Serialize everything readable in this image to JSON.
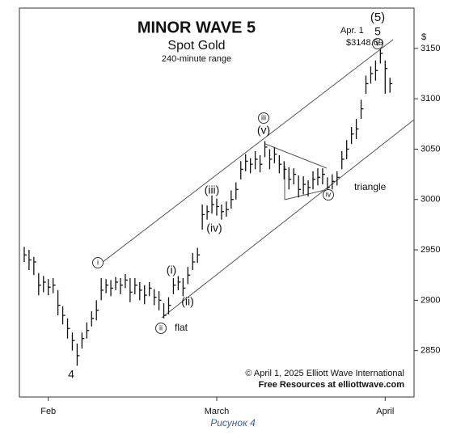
{
  "chart_data": {
    "type": "ohlc",
    "title": "MINOR WAVE 5",
    "subtitle": "Spot Gold",
    "note": "240-minute range",
    "y_label": "$",
    "caption": "Рисунок 4",
    "footer": [
      "© April 1, 2025  Elliott Wave International",
      "Free Resources at elliottwave.com"
    ],
    "color": "#111111",
    "x": [
      0,
      1,
      2,
      3,
      4,
      5,
      6,
      7,
      8,
      9,
      10,
      11,
      12,
      13,
      14,
      15,
      16,
      17,
      18,
      19,
      20,
      21,
      22,
      23,
      24,
      25,
      26,
      27,
      28,
      29,
      30,
      31,
      32,
      33,
      34,
      35,
      36,
      37,
      38,
      39,
      40,
      41,
      42,
      43,
      44,
      45,
      46,
      47,
      48,
      49,
      50,
      51,
      52,
      53,
      54,
      55,
      56,
      57,
      58,
      59,
      60,
      61,
      62,
      63,
      64,
      65,
      66,
      67,
      68,
      69,
      70,
      71,
      72,
      73,
      74,
      75,
      76
    ],
    "high": [
      2953,
      2950,
      2943,
      2927,
      2924,
      2921,
      2922,
      2910,
      2894,
      2882,
      2868,
      2857,
      2868,
      2878,
      2889,
      2900,
      2922,
      2921,
      2920,
      2923,
      2922,
      2926,
      2922,
      2922,
      2918,
      2915,
      2918,
      2911,
      2909,
      2897,
      2903,
      2922,
      2924,
      2922,
      2933,
      2947,
      2952,
      2995,
      2994,
      3004,
      3001,
      2995,
      2998,
      3009,
      3017,
      3038,
      3045,
      3041,
      3048,
      3044,
      3058,
      3050,
      3052,
      3044,
      3038,
      3032,
      3031,
      3024,
      3023,
      3019,
      3028,
      3031,
      3031,
      3022,
      3025,
      3028,
      3048,
      3059,
      3072,
      3080,
      3099,
      3123,
      3132,
      3138,
      3149,
      3138,
      3121
    ],
    "low": [
      2938,
      2930,
      2925,
      2905,
      2908,
      2905,
      2907,
      2885,
      2876,
      2862,
      2850,
      2835,
      2852,
      2862,
      2874,
      2880,
      2900,
      2907,
      2904,
      2910,
      2906,
      2912,
      2898,
      2906,
      2900,
      2896,
      2904,
      2895,
      2890,
      2882,
      2886,
      2906,
      2910,
      2904,
      2916,
      2930,
      2937,
      2970,
      2980,
      2986,
      2984,
      2980,
      2983,
      2991,
      3000,
      3020,
      3028,
      3026,
      3030,
      3027,
      3042,
      3030,
      3036,
      3026,
      3020,
      3010,
      3015,
      3002,
      3005,
      3003,
      3010,
      3014,
      3015,
      3004,
      3010,
      3014,
      3030,
      3040,
      3055,
      3060,
      3080,
      3105,
      3115,
      3118,
      3135,
      3105,
      3106
    ],
    "close": [
      2945,
      2940,
      2938,
      2915,
      2918,
      2913,
      2915,
      2895,
      2885,
      2872,
      2860,
      2845,
      2862,
      2870,
      2882,
      2890,
      2910,
      2915,
      2912,
      2918,
      2915,
      2920,
      2908,
      2915,
      2910,
      2905,
      2912,
      2903,
      2900,
      2885,
      2895,
      2915,
      2918,
      2912,
      2925,
      2938,
      2945,
      2985,
      2988,
      2995,
      2993,
      2988,
      2990,
      3000,
      3010,
      3030,
      3038,
      3035,
      3040,
      3035,
      3052,
      3040,
      3045,
      3035,
      3030,
      3020,
      3025,
      3010,
      3015,
      3012,
      3020,
      3022,
      3025,
      3012,
      3018,
      3022,
      3040,
      3050,
      3065,
      3070,
      3090,
      3115,
      3125,
      3128,
      3145,
      3130,
      3115
    ],
    "xlim": [
      -1,
      81
    ],
    "xticks": [
      {
        "value": 5,
        "label": "Feb"
      },
      {
        "value": 40,
        "label": "March"
      },
      {
        "value": 75,
        "label": "April"
      }
    ],
    "ylim": [
      2804,
      3190
    ],
    "yticks": [
      2850,
      2900,
      2950,
      3000,
      3050,
      3100,
      3150
    ],
    "annotations": [
      {
        "text": "(5)",
        "circled": false
      },
      {
        "text": "5",
        "circled": false
      },
      {
        "text": "v",
        "circled": true
      },
      {
        "text": "Apr. 1",
        "circled": false
      },
      {
        "text": "$3148.69",
        "circled": false
      },
      {
        "text": "iii",
        "circled": true
      },
      {
        "text": "(v)",
        "circled": false
      },
      {
        "text": "(iii)",
        "circled": false
      },
      {
        "text": "(iv)",
        "circled": false
      },
      {
        "text": "iv",
        "circled": true
      },
      {
        "text": "triangle",
        "circled": false
      },
      {
        "text": "i",
        "circled": true
      },
      {
        "text": "(i)",
        "circled": false
      },
      {
        "text": "(ii)",
        "circled": false
      },
      {
        "text": "ii",
        "circled": true
      },
      {
        "text": "flat",
        "circled": false
      },
      {
        "text": "4",
        "circled": false
      }
    ]
  }
}
